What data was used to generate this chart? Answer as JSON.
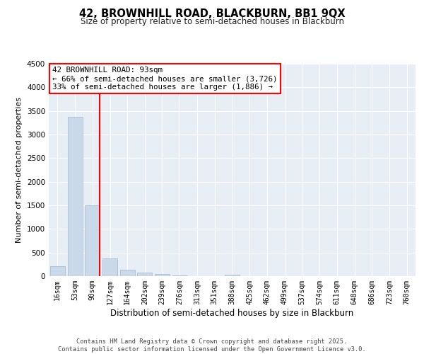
{
  "title_line1": "42, BROWNHILL ROAD, BLACKBURN, BB1 9QX",
  "title_line2": "Size of property relative to semi-detached houses in Blackburn",
  "xlabel": "Distribution of semi-detached houses by size in Blackburn",
  "ylabel": "Number of semi-detached properties",
  "categories": [
    "16sqm",
    "53sqm",
    "90sqm",
    "127sqm",
    "164sqm",
    "202sqm",
    "239sqm",
    "276sqm",
    "313sqm",
    "351sqm",
    "388sqm",
    "425sqm",
    "462sqm",
    "499sqm",
    "537sqm",
    "574sqm",
    "611sqm",
    "648sqm",
    "686sqm",
    "723sqm",
    "760sqm"
  ],
  "values": [
    210,
    3380,
    1500,
    370,
    130,
    80,
    40,
    15,
    5,
    5,
    30,
    5,
    0,
    0,
    0,
    0,
    0,
    0,
    0,
    0,
    0
  ],
  "bar_color": "#c9d9ea",
  "bar_edge_color": "#aabfd4",
  "annotation_text": "42 BROWNHILL ROAD: 93sqm\n← 66% of semi-detached houses are smaller (3,726)\n33% of semi-detached houses are larger (1,886) →",
  "ylim": [
    0,
    4500
  ],
  "yticks": [
    0,
    500,
    1000,
    1500,
    2000,
    2500,
    3000,
    3500,
    4000,
    4500
  ],
  "footer_text": "Contains HM Land Registry data © Crown copyright and database right 2025.\nContains public sector information licensed under the Open Government Licence v3.0.",
  "bg_color": "#ffffff",
  "plot_bg_color": "#e8eef6",
  "grid_color": "#ffffff"
}
